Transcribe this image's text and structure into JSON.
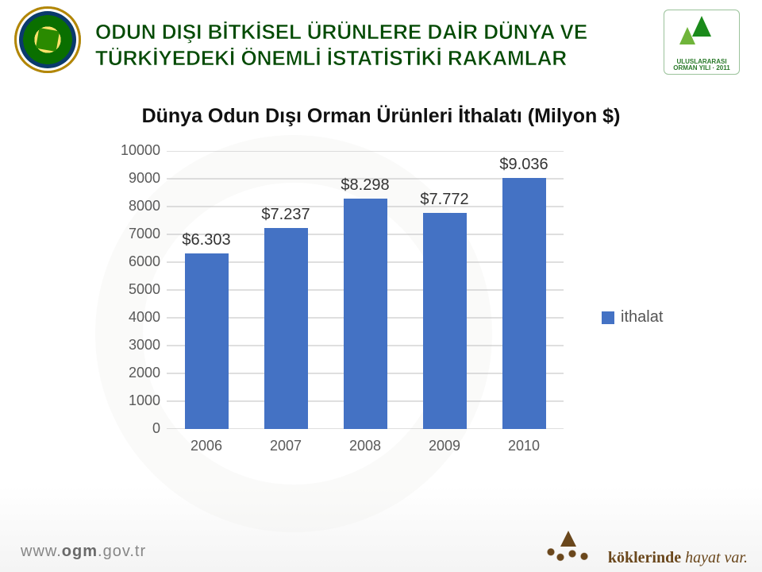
{
  "header": {
    "title_line1": "ODUN DIŞI BİTKİSEL ÜRÜNLERE DAİR DÜNYA VE",
    "title_line2": "TÜRKİYEDEKİ ÖNEMLİ İSTATİSTİKİ RAKAMLAR",
    "title_color": "#034a03",
    "right_logo_caption": "ULUSLARARASI ORMAN YILI · 2011"
  },
  "chart": {
    "type": "bar",
    "title": "Dünya Odun Dışı Orman Ürünleri İthalatı (Milyon $)",
    "title_fontsize": 25,
    "categories": [
      "2006",
      "2007",
      "2008",
      "2009",
      "2010"
    ],
    "values": [
      6303,
      7237,
      8298,
      7772,
      9036
    ],
    "value_labels": [
      "$6.303",
      "$7.237",
      "$8.298",
      "$7.772",
      "$9.036"
    ],
    "bar_color": "#4472c4",
    "ylim": [
      0,
      10000
    ],
    "ytick_step": 1000,
    "yticks": [
      0,
      1000,
      2000,
      3000,
      4000,
      5000,
      6000,
      7000,
      8000,
      9000,
      10000
    ],
    "grid_color": "#bfbfbf",
    "background_color": "#ffffff",
    "axis_label_color": "#595959",
    "axis_label_fontsize": 18,
    "value_label_fontsize": 20,
    "value_label_color": "#333333",
    "bar_width_ratio": 0.55,
    "legend": {
      "label": "ithalat",
      "color": "#4472c4",
      "position": "right-middle"
    }
  },
  "footer": {
    "url_prefix": "www.",
    "url_main": "ogm",
    "url_suffix": ".gov.tr",
    "tagline_prefix": "köklerinde",
    "tagline_em": "hayat var."
  }
}
